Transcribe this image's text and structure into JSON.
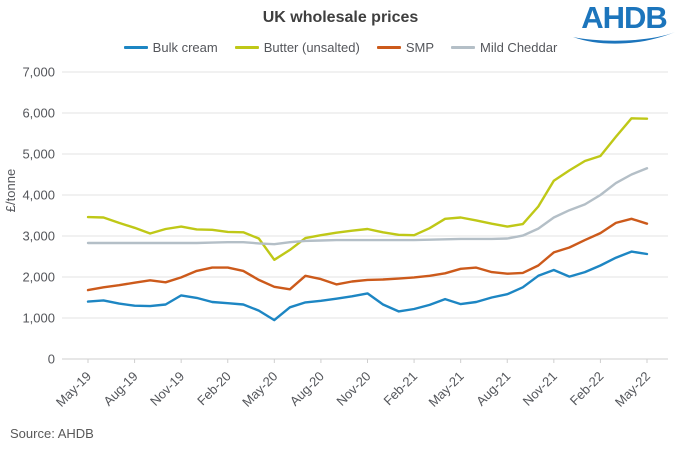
{
  "header": {
    "title": "UK wholesale prices"
  },
  "logo": {
    "text": "AHDB",
    "color": "#1c75bc"
  },
  "legend": {
    "items": [
      {
        "label": "Bulk cream",
        "color": "#1d86c3"
      },
      {
        "label": "Butter (unsalted)",
        "color": "#bfc817"
      },
      {
        "label": "SMP",
        "color": "#cc5a1b"
      },
      {
        "label": "Mild Cheddar",
        "color": "#b4bfc7"
      }
    ]
  },
  "chart_data": {
    "type": "line",
    "title": "UK wholesale prices",
    "ylabel": "£/tonne",
    "xlabel": "",
    "ylim": [
      0,
      7000
    ],
    "grid": true,
    "legend_position": "top",
    "ytick_labels": [
      "0",
      "1,000",
      "2,000",
      "3,000",
      "4,000",
      "5,000",
      "6,000",
      "7,000"
    ],
    "x": [
      "May-19",
      "Jun-19",
      "Jul-19",
      "Aug-19",
      "Sep-19",
      "Oct-19",
      "Nov-19",
      "Dec-19",
      "Jan-20",
      "Feb-20",
      "Mar-20",
      "Apr-20",
      "May-20",
      "Jun-20",
      "Jul-20",
      "Aug-20",
      "Sep-20",
      "Oct-20",
      "Nov-20",
      "Dec-20",
      "Jan-21",
      "Feb-21",
      "Mar-21",
      "Apr-21",
      "May-21",
      "Jun-21",
      "Jul-21",
      "Aug-21",
      "Sep-21",
      "Oct-21",
      "Nov-21",
      "Dec-21",
      "Jan-22",
      "Feb-22",
      "Mar-22",
      "Apr-22",
      "May-22"
    ],
    "xtick_labels_shown": [
      "May-19",
      "Aug-19",
      "Nov-19",
      "Feb-20",
      "May-20",
      "Aug-20",
      "Nov-20",
      "Feb-21",
      "May-21",
      "Aug-21",
      "Nov-21",
      "Feb-22",
      "May-22"
    ],
    "series": [
      {
        "name": "Bulk cream",
        "color": "#1d86c3",
        "values": [
          1400,
          1430,
          1350,
          1300,
          1290,
          1330,
          1550,
          1490,
          1390,
          1360,
          1330,
          1180,
          950,
          1260,
          1380,
          1420,
          1470,
          1530,
          1600,
          1330,
          1160,
          1220,
          1320,
          1460,
          1340,
          1390,
          1500,
          1580,
          1750,
          2030,
          2170,
          2010,
          2120,
          2280,
          2470,
          2620,
          2560
        ]
      },
      {
        "name": "Butter (unsalted)",
        "color": "#bfc817",
        "values": [
          3460,
          3450,
          3320,
          3200,
          3060,
          3170,
          3230,
          3160,
          3150,
          3100,
          3090,
          2940,
          2420,
          2660,
          2950,
          3020,
          3080,
          3130,
          3170,
          3090,
          3030,
          3020,
          3190,
          3420,
          3450,
          3380,
          3300,
          3230,
          3290,
          3720,
          4350,
          4600,
          4830,
          4950,
          5420,
          5870,
          5860
        ]
      },
      {
        "name": "SMP",
        "color": "#cc5a1b",
        "values": [
          1680,
          1750,
          1800,
          1860,
          1920,
          1870,
          1990,
          2150,
          2230,
          2230,
          2150,
          1930,
          1760,
          1700,
          2030,
          1950,
          1820,
          1890,
          1930,
          1940,
          1960,
          1990,
          2030,
          2090,
          2200,
          2230,
          2120,
          2080,
          2100,
          2280,
          2600,
          2720,
          2900,
          3070,
          3320,
          3420,
          3300
        ]
      },
      {
        "name": "Mild Cheddar",
        "color": "#b4bfc7",
        "values": [
          2830,
          2830,
          2830,
          2830,
          2830,
          2830,
          2830,
          2830,
          2840,
          2850,
          2850,
          2820,
          2800,
          2850,
          2880,
          2890,
          2900,
          2900,
          2900,
          2900,
          2900,
          2900,
          2910,
          2920,
          2930,
          2930,
          2930,
          2940,
          3010,
          3180,
          3450,
          3630,
          3770,
          4000,
          4290,
          4500,
          4650
        ]
      }
    ]
  },
  "footer": {
    "source": "Source: AHDB"
  }
}
